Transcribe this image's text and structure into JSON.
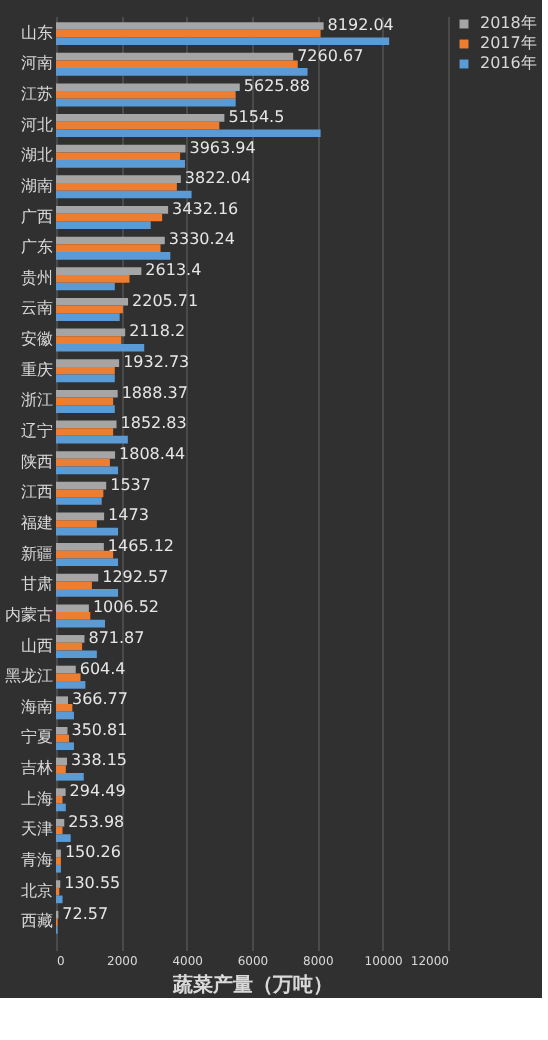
{
  "chart_data": {
    "type": "bar",
    "orientation": "horizontal",
    "xlabel": "蔬菜产量（万吨）",
    "categories": [
      "山东",
      "河南",
      "江苏",
      "河北",
      "湖北",
      "湖南",
      "广西",
      "广东",
      "贵州",
      "云南",
      "安徽",
      "重庆",
      "浙江",
      "辽宁",
      "陕西",
      "江西",
      "福建",
      "新疆",
      "甘肃",
      "内蒙古",
      "山西",
      "黑龙江",
      "海南",
      "宁夏",
      "吉林",
      "上海",
      "天津",
      "青海",
      "北京",
      "西藏"
    ],
    "series": [
      {
        "name": "2018年",
        "color": "#a5a5a5",
        "values": [
          8192.04,
          7260.67,
          5625.88,
          5154.5,
          3963.94,
          3822.04,
          3432.16,
          3330.24,
          2613.4,
          2205.71,
          2118.2,
          1932.73,
          1888.37,
          1852.83,
          1808.44,
          1537,
          1473,
          1465.12,
          1292.57,
          1006.52,
          871.87,
          604.4,
          366.77,
          350.81,
          338.15,
          294.49,
          253.98,
          150.26,
          130.55,
          72.57
        ],
        "value_labels": [
          "8192.04",
          "7260.67",
          "5625.88",
          "5154.5",
          "3963.94",
          "3822.04",
          "3432.16",
          "3330.24",
          "2613.4",
          "2205.71",
          "2118.2",
          "1932.73",
          "1888.37",
          "1852.83",
          "1808.44",
          "1537",
          "1473",
          "1465.12",
          "1292.57",
          "1006.52",
          "871.87",
          "604.4",
          "366.77",
          "350.81",
          "338.15",
          "294.49",
          "253.98",
          "150.26",
          "130.55",
          "72.57"
        ]
      },
      {
        "name": "2017年",
        "color": "#ed7d31",
        "values": [
          8100,
          7400,
          5500,
          5000,
          3800,
          3700,
          3250,
          3200,
          2250,
          2050,
          2000,
          1800,
          1750,
          1750,
          1650,
          1450,
          1250,
          1750,
          1100,
          1050,
          800,
          750,
          500,
          400,
          300,
          200,
          200,
          150,
          100,
          50
        ]
      },
      {
        "name": "2016年",
        "color": "#5b9bd5",
        "values": [
          10200,
          7700,
          5500,
          8100,
          3950,
          4150,
          2900,
          3500,
          1800,
          1950,
          2700,
          1800,
          1800,
          2200,
          1900,
          1400,
          1900,
          1900,
          1900,
          1500,
          1250,
          900,
          550,
          550,
          850,
          300,
          450,
          150,
          200,
          50
        ]
      }
    ],
    "xlim": [
      0,
      12000
    ],
    "xticks": [
      0,
      2000,
      4000,
      6000,
      8000,
      10000,
      12000
    ],
    "grid": "x",
    "legend": "right"
  }
}
